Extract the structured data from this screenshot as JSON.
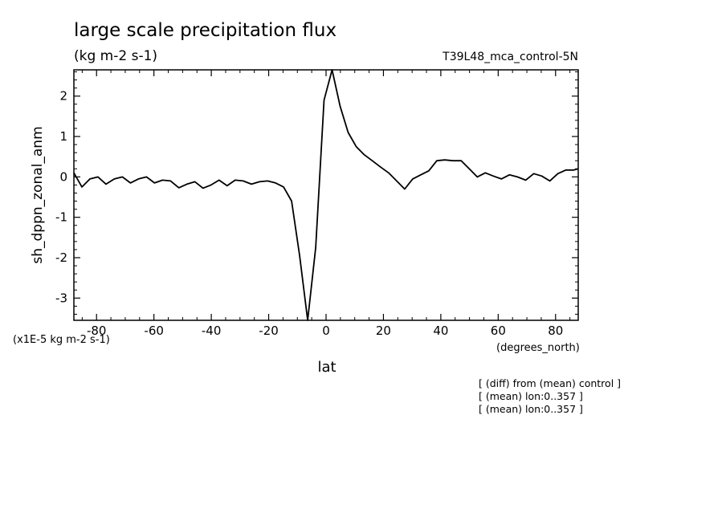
{
  "chart_data": {
    "type": "line",
    "title": "large scale precipitation flux",
    "subtitle": "(kg m-2 s-1)",
    "run_label": "T39L48_mca_control-5N",
    "xlabel": "lat",
    "x_units": "(degrees_north)",
    "ylabel": "sh_dppn_zonal_anm",
    "y_units": "(x1E-5 kg m-2 s-1)",
    "xlim": [
      -87.9,
      87.9
    ],
    "ylim": [
      -3.55,
      2.65
    ],
    "grid": false,
    "legend": "none",
    "x_ticks": [
      -80,
      -60,
      -40,
      -20,
      0,
      20,
      40,
      60,
      80
    ],
    "x_tick_labels": [
      "-80",
      "-60",
      "-40",
      "-20",
      "0",
      "20",
      "40",
      "60",
      "80"
    ],
    "y_ticks": [
      2,
      1,
      0,
      -1,
      -2,
      -3
    ],
    "y_tick_labels": [
      "2",
      "1",
      "0",
      "-1",
      "-2",
      "-3"
    ],
    "x": [
      -87.9,
      -85.1,
      -82.3,
      -79.5,
      -76.7,
      -73.8,
      -71.0,
      -68.2,
      -65.4,
      -62.6,
      -59.8,
      -57.0,
      -54.2,
      -51.3,
      -48.5,
      -45.7,
      -42.9,
      -40.1,
      -37.3,
      -34.5,
      -31.7,
      -28.9,
      -26.0,
      -23.2,
      -20.4,
      -17.6,
      -14.8,
      -12.0,
      -9.2,
      -6.4,
      -3.6,
      -0.7,
      2.1,
      4.9,
      7.7,
      10.5,
      13.3,
      16.1,
      18.9,
      21.8,
      24.6,
      27.4,
      30.2,
      33.0,
      35.8,
      38.6,
      41.4,
      44.2,
      47.1,
      49.9,
      52.7,
      55.5,
      58.3,
      61.1,
      63.9,
      66.7,
      69.6,
      72.4,
      75.2,
      78.0,
      80.8,
      83.6,
      86.4,
      87.9
    ],
    "series": [
      {
        "values": [
          0.1,
          -0.25,
          -0.05,
          0.0,
          -0.18,
          -0.05,
          0.0,
          -0.15,
          -0.05,
          0.0,
          -0.15,
          -0.08,
          -0.1,
          -0.27,
          -0.18,
          -0.12,
          -0.28,
          -0.2,
          -0.08,
          -0.22,
          -0.08,
          -0.1,
          -0.18,
          -0.12,
          -0.1,
          -0.15,
          -0.25,
          -0.6,
          -1.95,
          -3.55,
          -1.75,
          1.9,
          2.65,
          1.75,
          1.1,
          0.75,
          0.55,
          0.4,
          0.25,
          0.1,
          -0.1,
          -0.3,
          -0.05,
          0.05,
          0.15,
          0.4,
          0.42,
          0.4,
          0.4,
          0.2,
          0.0,
          0.1,
          0.02,
          -0.05,
          0.05,
          0.0,
          -0.08,
          0.08,
          0.02,
          -0.1,
          0.08,
          0.17,
          0.17,
          0.2
        ]
      }
    ],
    "annotations": [
      "[ (diff) from (mean) control ]",
      "[ (mean) lon:0..357 ]",
      "[ (mean) lon:0..357 ]"
    ]
  }
}
